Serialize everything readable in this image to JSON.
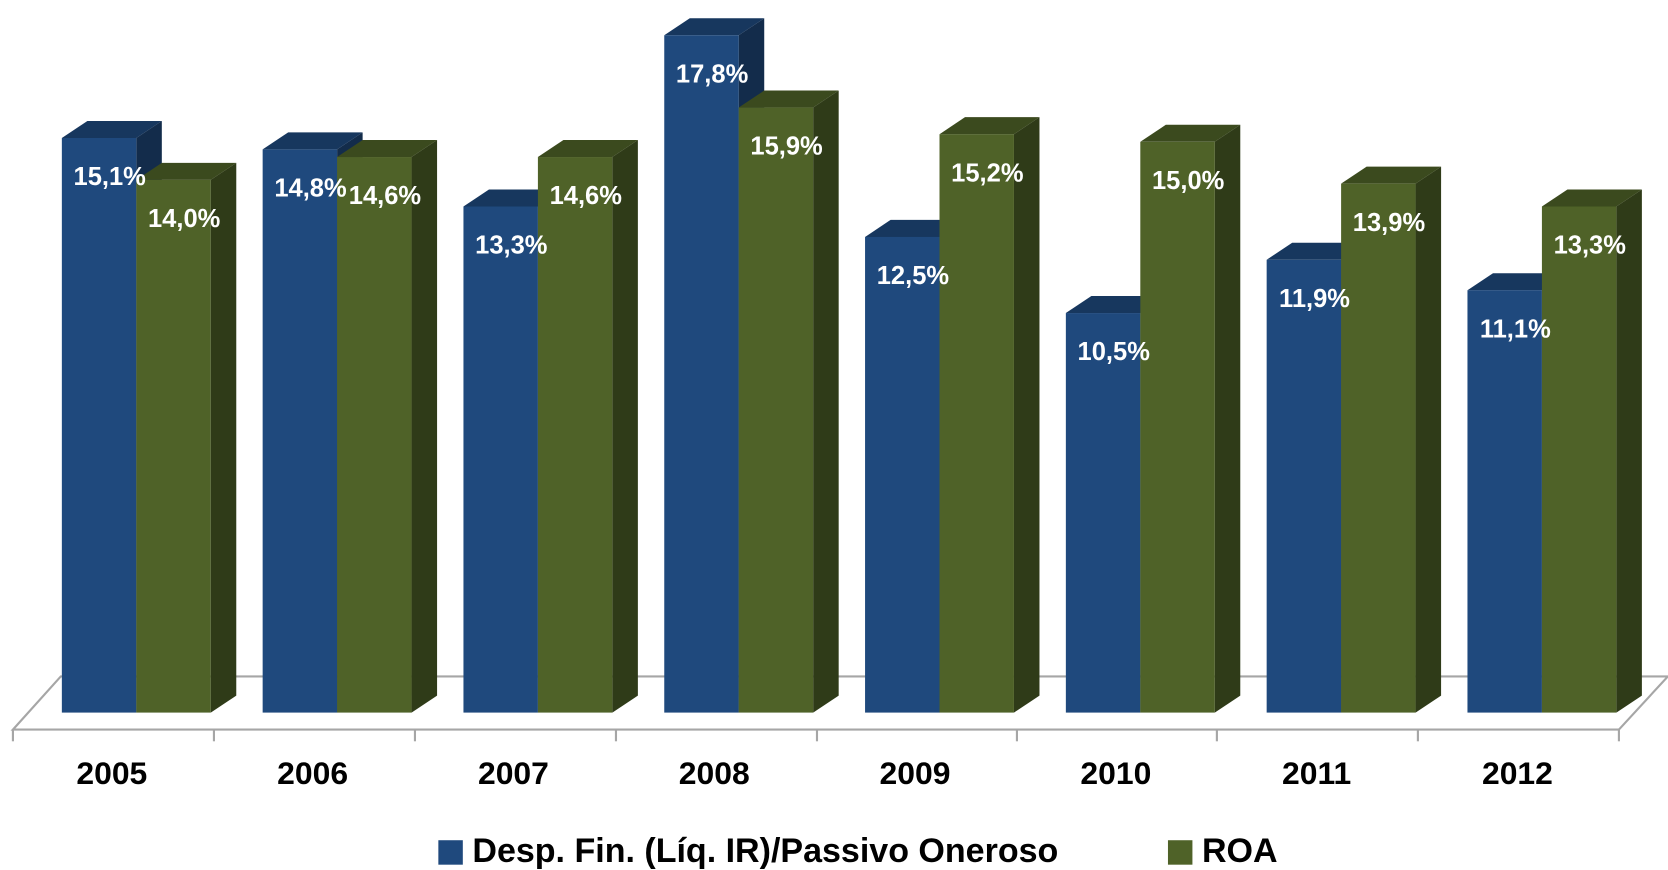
{
  "chart_data": {
    "type": "bar3d",
    "categories": [
      "2005",
      "2006",
      "2007",
      "2008",
      "2009",
      "2010",
      "2011",
      "2012"
    ],
    "series": [
      {
        "name": "Desp. Fin. (Líq. IR)/Passivo Oneroso",
        "color": "#1f497d",
        "values": [
          15.1,
          14.8,
          13.3,
          17.8,
          12.5,
          10.5,
          11.9,
          11.1
        ],
        "value_labels": [
          "15,1%",
          "14,8%",
          "13,3%",
          "17,8%",
          "12,5%",
          "10,5%",
          "11,9%",
          "11,1%"
        ]
      },
      {
        "name": "ROA",
        "color": "#4f6228",
        "values": [
          14.0,
          14.6,
          14.6,
          15.9,
          15.2,
          15.0,
          13.9,
          13.3
        ],
        "value_labels": [
          "14,0%",
          "14,6%",
          "14,6%",
          "15,9%",
          "15,2%",
          "15,0%",
          "13,9%",
          "13,3%"
        ]
      }
    ],
    "ylim": [
      0,
      18
    ],
    "legend": "bottom"
  }
}
